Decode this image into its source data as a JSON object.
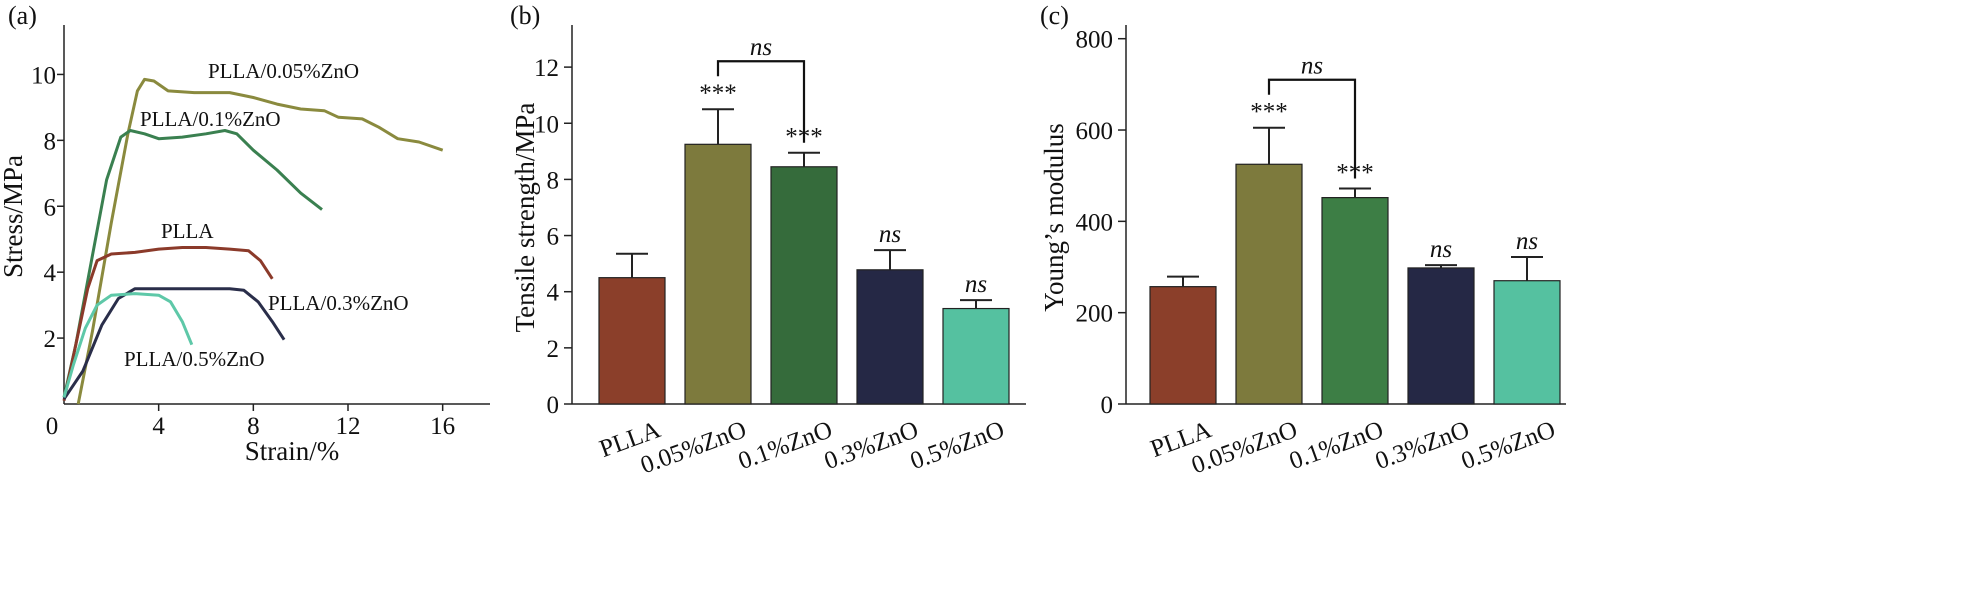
{
  "chart_data": [
    {
      "panel": "(a)",
      "type": "line",
      "xlabel": "Strain/%",
      "ylabel": "Stress/MPa",
      "xlim": [
        0,
        18
      ],
      "ylim": [
        0,
        11.5
      ],
      "xticks": [
        0,
        4,
        8,
        12,
        16
      ],
      "yticks": [
        2,
        4,
        6,
        8,
        10
      ],
      "series": [
        {
          "name": "PLLA/0.05%ZnO",
          "color": "#8a8a3e",
          "points": [
            [
              0.6,
              0
            ],
            [
              1.2,
              2.2
            ],
            [
              2.0,
              5.5
            ],
            [
              2.7,
              8.2
            ],
            [
              3.1,
              9.5
            ],
            [
              3.4,
              9.85
            ],
            [
              3.8,
              9.8
            ],
            [
              4.4,
              9.5
            ],
            [
              5.5,
              9.45
            ],
            [
              7.0,
              9.45
            ],
            [
              8.0,
              9.3
            ],
            [
              9.0,
              9.1
            ],
            [
              10.0,
              8.95
            ],
            [
              11.0,
              8.9
            ],
            [
              11.6,
              8.7
            ],
            [
              12.6,
              8.65
            ],
            [
              13.3,
              8.4
            ],
            [
              14.1,
              8.05
            ],
            [
              15.0,
              7.95
            ],
            [
              16.0,
              7.7
            ]
          ]
        },
        {
          "name": "PLLA/0.1%ZnO",
          "color": "#3a8050",
          "points": [
            [
              0,
              0.2
            ],
            [
              0.5,
              1.8
            ],
            [
              1.2,
              4.5
            ],
            [
              1.8,
              6.8
            ],
            [
              2.4,
              8.1
            ],
            [
              2.8,
              8.3
            ],
            [
              3.4,
              8.2
            ],
            [
              4.0,
              8.05
            ],
            [
              5.0,
              8.1
            ],
            [
              6.0,
              8.2
            ],
            [
              6.8,
              8.3
            ],
            [
              7.3,
              8.2
            ],
            [
              8.0,
              7.7
            ],
            [
              9.0,
              7.1
            ],
            [
              10.0,
              6.4
            ],
            [
              10.9,
              5.9
            ]
          ]
        },
        {
          "name": "PLLA",
          "color": "#8b3a2a",
          "points": [
            [
              0,
              0.1
            ],
            [
              0.5,
              1.8
            ],
            [
              1.0,
              3.5
            ],
            [
              1.4,
              4.35
            ],
            [
              2.0,
              4.55
            ],
            [
              3.0,
              4.6
            ],
            [
              4.0,
              4.7
            ],
            [
              5.0,
              4.75
            ],
            [
              6.0,
              4.75
            ],
            [
              7.0,
              4.7
            ],
            [
              7.8,
              4.65
            ],
            [
              8.3,
              4.35
            ],
            [
              8.8,
              3.8
            ]
          ]
        },
        {
          "name": "PLLA/0.3%ZnO",
          "color": "#2a2e4a",
          "points": [
            [
              0,
              0.15
            ],
            [
              0.8,
              1.0
            ],
            [
              1.6,
              2.4
            ],
            [
              2.3,
              3.2
            ],
            [
              3.0,
              3.5
            ],
            [
              4.0,
              3.5
            ],
            [
              5.0,
              3.5
            ],
            [
              6.0,
              3.5
            ],
            [
              7.0,
              3.5
            ],
            [
              7.6,
              3.45
            ],
            [
              8.2,
              3.1
            ],
            [
              8.8,
              2.5
            ],
            [
              9.3,
              1.95
            ]
          ]
        },
        {
          "name": "PLLA/0.5%ZnO",
          "color": "#5ec8a8",
          "points": [
            [
              0,
              0.2
            ],
            [
              0.4,
              1.2
            ],
            [
              0.9,
              2.3
            ],
            [
              1.4,
              3.0
            ],
            [
              2.0,
              3.3
            ],
            [
              3.0,
              3.35
            ],
            [
              4.0,
              3.3
            ],
            [
              4.5,
              3.1
            ],
            [
              5.0,
              2.5
            ],
            [
              5.4,
              1.8
            ]
          ]
        }
      ]
    },
    {
      "panel": "(b)",
      "type": "bar",
      "ylabel": "Tensile strength/MPa",
      "ylim": [
        0,
        13.5
      ],
      "yticks": [
        0,
        2,
        4,
        6,
        8,
        10,
        12
      ],
      "categories": [
        "PLLA",
        "0.05%ZnO",
        "0.1%ZnO",
        "0.3%ZnO",
        "0.5%ZnO"
      ],
      "values": [
        4.5,
        9.25,
        8.45,
        4.78,
        3.4
      ],
      "errors": [
        0.85,
        1.25,
        0.5,
        0.7,
        0.3
      ],
      "colors": [
        "#8b3f2a",
        "#7d7a3d",
        "#356b3b",
        "#252845",
        "#55c1a0"
      ],
      "significance": [
        "",
        "***",
        "***",
        "ns",
        "ns"
      ],
      "bracket": {
        "from": 1,
        "to": 2,
        "label": "ns"
      }
    },
    {
      "panel": "(c)",
      "type": "bar",
      "ylabel": "Young’s modulus",
      "ylim": [
        0,
        830
      ],
      "yticks": [
        0,
        200,
        400,
        600,
        800
      ],
      "categories": [
        "PLLA",
        "0.05%ZnO",
        "0.1%ZnO",
        "0.3%ZnO",
        "0.5%ZnO"
      ],
      "values": [
        257,
        525,
        452,
        298,
        270
      ],
      "errors": [
        22,
        80,
        20,
        6,
        52
      ],
      "colors": [
        "#8b3f2a",
        "#7d7a3d",
        "#3d7e45",
        "#252845",
        "#55c1a0"
      ],
      "significance": [
        "",
        "***",
        "***",
        "ns",
        "ns"
      ],
      "bracket": {
        "from": 1,
        "to": 2,
        "label": "ns"
      }
    }
  ]
}
